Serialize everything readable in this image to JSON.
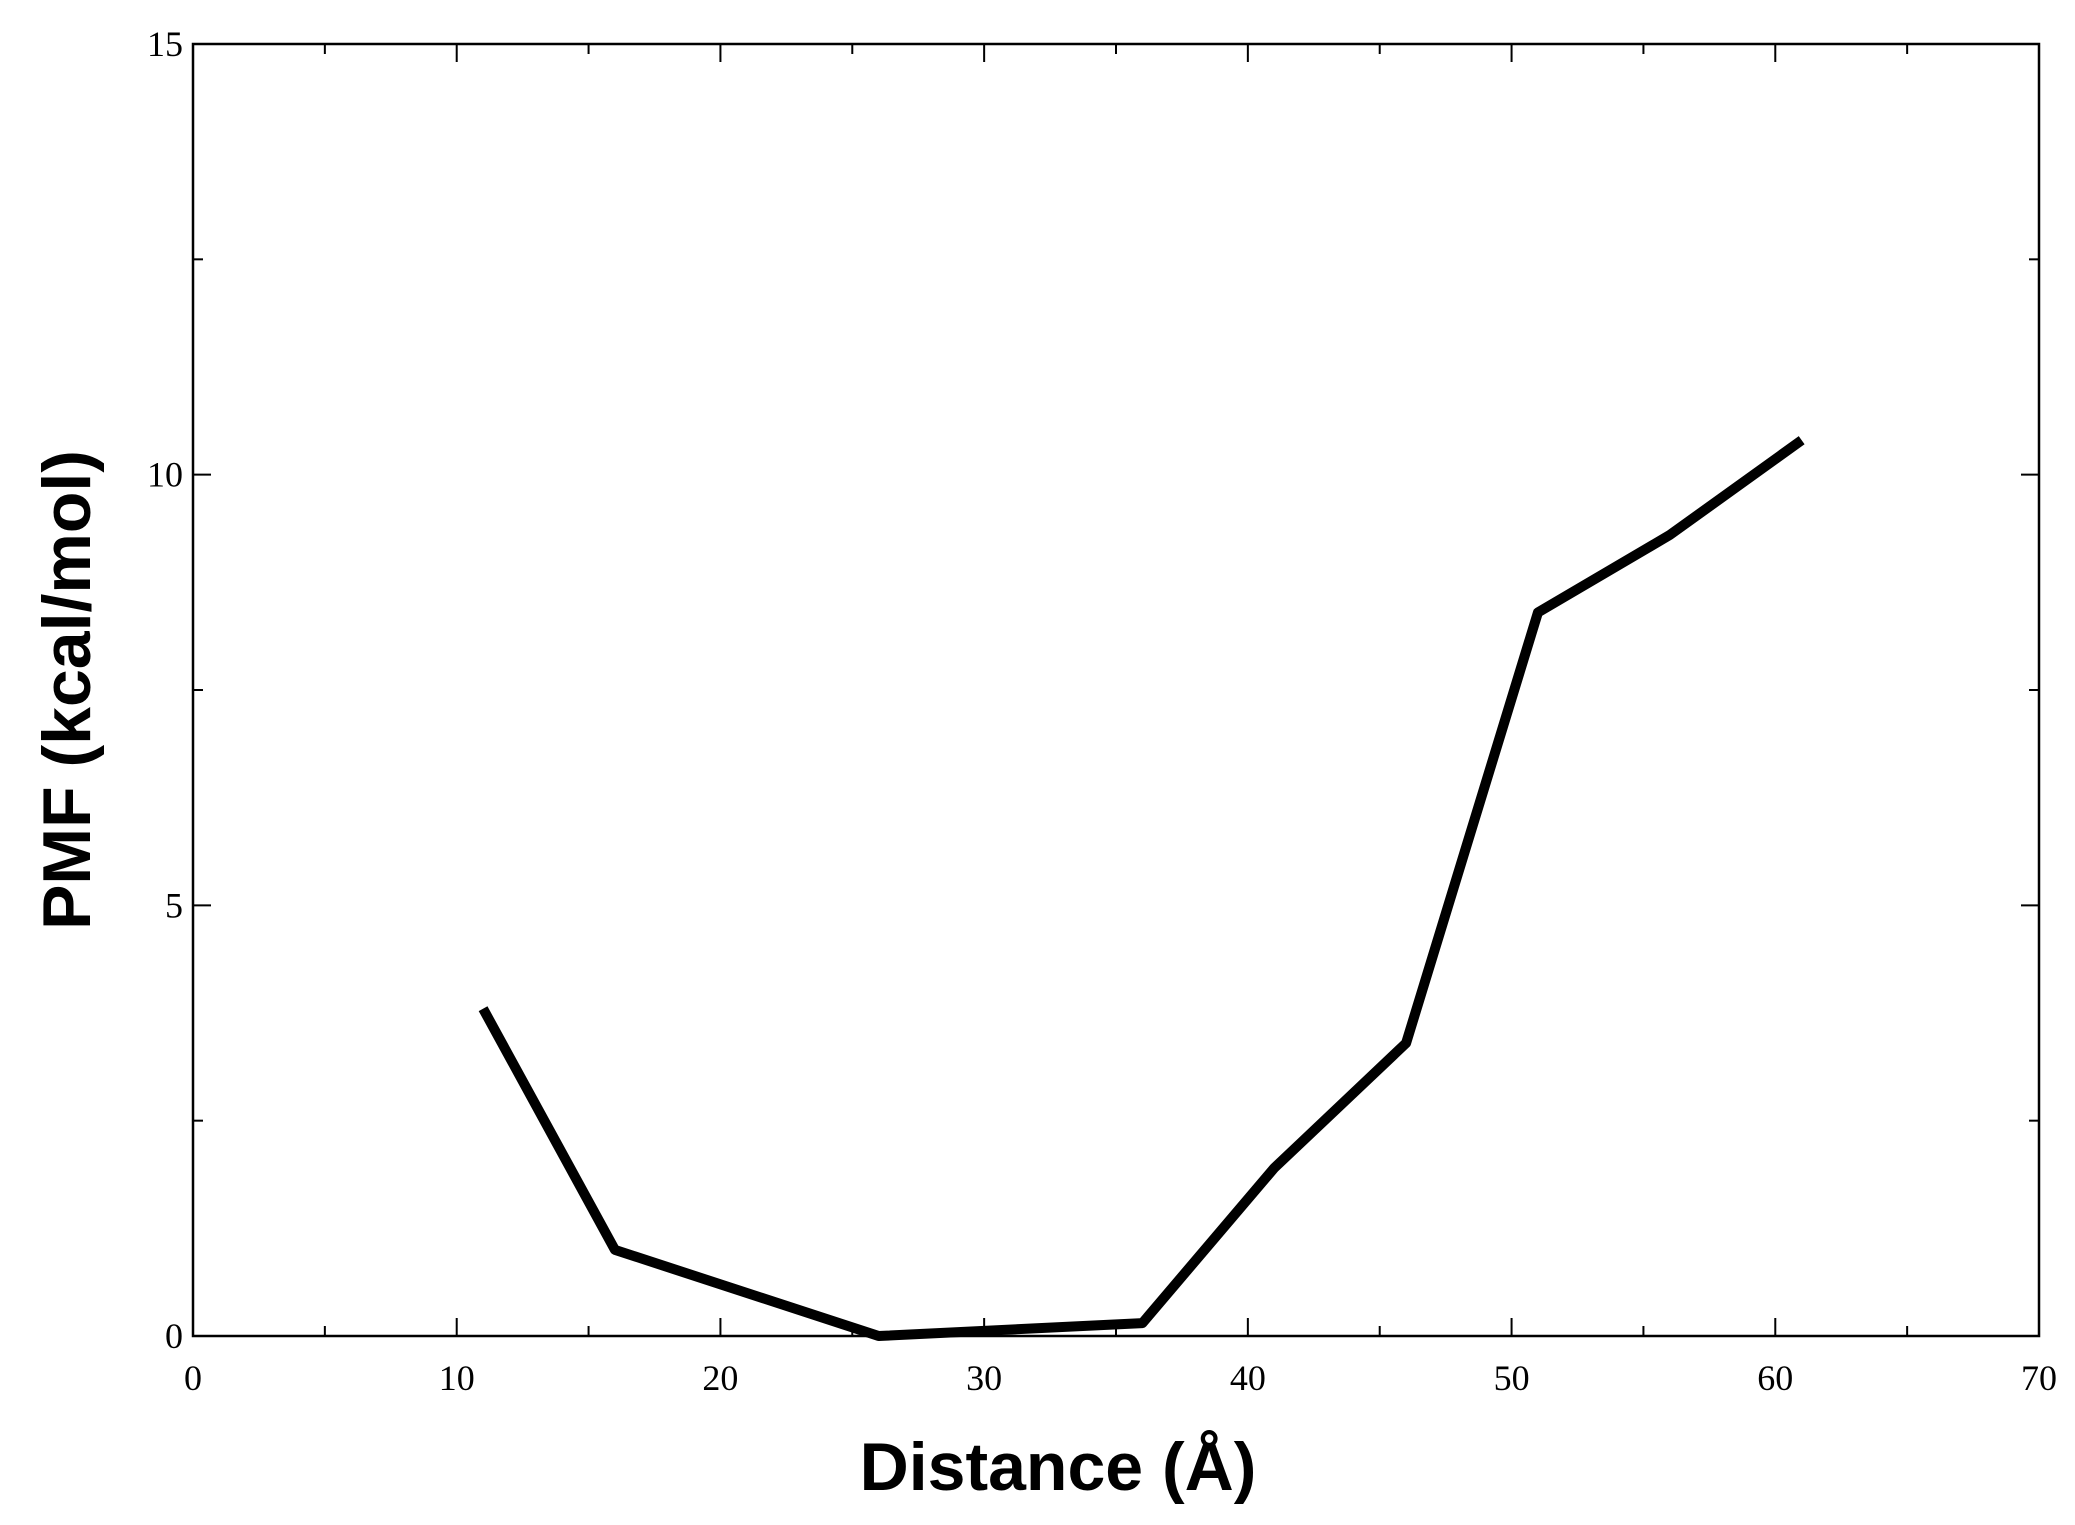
{
  "chart_data": {
    "type": "line",
    "xlabel": "Distance (Å)",
    "ylabel": "PMF (kcal/mol)",
    "x": [
      11,
      16,
      26,
      36,
      41,
      46,
      51,
      56,
      61
    ],
    "series": [
      {
        "color": "#000000",
        "values": [
          3.8,
          1.0,
          0.0,
          0.15,
          1.95,
          3.4,
          8.4,
          9.3,
          10.4
        ]
      }
    ],
    "xlim": [
      0,
      70
    ],
    "xticks": [
      0,
      10,
      20,
      30,
      40,
      50,
      60,
      70
    ],
    "ylim": [
      0,
      15
    ],
    "yticks": [
      0,
      5,
      10,
      15
    ],
    "grid": false
  }
}
